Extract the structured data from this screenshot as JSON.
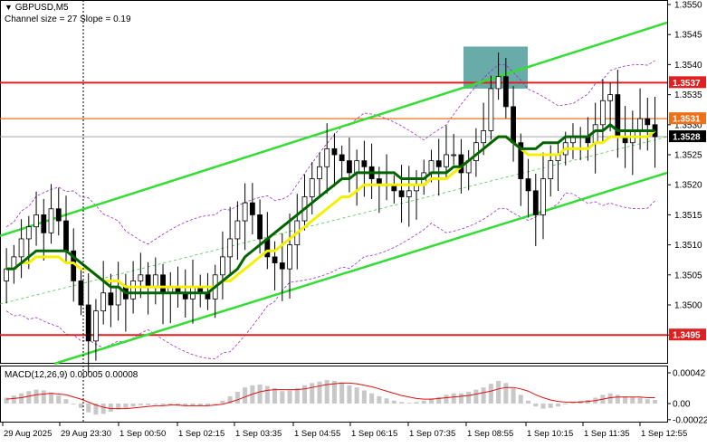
{
  "header": {
    "symbol": "GBPUSD,M5",
    "indicator_info": "Channel size = 27 Slope = 0.19",
    "menu_icon": "triangle-down-icon"
  },
  "macd_label": "MACD(12,26,9) 0.00005 0.00008",
  "colors": {
    "bull_candle": "#000000",
    "bear_candle": "#000000",
    "ma_fast": "#f5f000",
    "ma_slow": "#006400",
    "channel": "#33dd33",
    "channel_mid": "#44cc44",
    "envelope": "#9a30c8",
    "level_red": "#e02020",
    "level_orange": "#f0701a",
    "highlight_box": "#4f9c99",
    "macd_hist": "#c8c8c8",
    "macd_signal": "#e01010"
  },
  "chart_data": [
    {
      "type": "candlestick",
      "title": "GBPUSD,M5",
      "y_ticks": [
        "1.3550",
        "1.3545",
        "1.3540",
        "1.3535",
        "1.3530",
        "1.3525",
        "1.3520",
        "1.3515",
        "1.3510",
        "1.3505",
        "1.3500",
        "1.3495"
      ],
      "x_ticks": [
        "29 Aug 2025",
        "29 Aug 23:30",
        "1 Sep 00:50",
        "1 Sep 02:15",
        "1 Sep 03:35",
        "1 Sep 04:55",
        "1 Sep 06:15",
        "1 Sep 07:35",
        "1 Sep 08:55",
        "1 Sep 10:15",
        "1 Sep 11:35",
        "1 Sep 12:55"
      ],
      "ylim": [
        1.349,
        1.3552
      ],
      "current_price": "1.3528",
      "levels": [
        {
          "label": "1.3537",
          "value": 1.3537,
          "color": "red"
        },
        {
          "label": "1.3531",
          "value": 1.3531,
          "color": "orange"
        },
        {
          "label": "1.3495",
          "value": 1.3495,
          "color": "red"
        }
      ],
      "channel": {
        "upper": [
          1.3513,
          1.3547
        ],
        "lower": [
          1.349,
          1.3522
        ],
        "middle": [
          1.35,
          1.3534
        ]
      },
      "highlight_zone": {
        "x_from": "1 Sep 08:25",
        "x_to": "1 Sep 09:05",
        "y_from": 1.3536,
        "y_to": 1.3543
      },
      "close": [
        1.3506,
        1.3508,
        1.3511,
        1.3513,
        1.3515,
        1.3512,
        1.3516,
        1.3514,
        1.3509,
        1.3504,
        1.35,
        1.3494,
        1.3499,
        1.3502,
        1.35,
        1.3503,
        1.3501,
        1.3504,
        1.3505,
        1.3503,
        1.3505,
        1.3502,
        1.3503,
        1.3502,
        1.3501,
        1.3503,
        1.3502,
        1.3501,
        1.3505,
        1.3508,
        1.3511,
        1.3514,
        1.3517,
        1.3515,
        1.3511,
        1.3508,
        1.3507,
        1.3506,
        1.351,
        1.3514,
        1.3518,
        1.3521,
        1.3523,
        1.3526,
        1.3525,
        1.3524,
        1.3522,
        1.3524,
        1.3523,
        1.3521,
        1.352,
        1.352,
        1.3519,
        1.3518,
        1.3519,
        1.352,
        1.3522,
        1.3524,
        1.3523,
        1.3525,
        1.3525,
        1.3522,
        1.3524,
        1.3527,
        1.3529,
        1.3536,
        1.3538,
        1.3533,
        1.3527,
        1.3521,
        1.3519,
        1.3515,
        1.3521,
        1.3524,
        1.3525,
        1.3527,
        1.3528,
        1.3528,
        1.3527,
        1.353,
        1.3534,
        1.3535,
        1.3528,
        1.3527,
        1.3529,
        1.3531,
        1.353,
        1.3528
      ],
      "series": [
        {
          "name": "MA fast",
          "values": [
            1.3506,
            1.3506,
            1.3507,
            1.3507,
            1.3508,
            1.3508,
            1.3508,
            1.3508,
            1.3507,
            1.3507,
            1.3506,
            1.3506,
            1.3505,
            1.3504,
            1.3504,
            1.3504,
            1.3503,
            1.3503,
            1.3503,
            1.3503,
            1.3503,
            1.3503,
            1.3503,
            1.3503,
            1.3503,
            1.3503,
            1.3503,
            1.3503,
            1.3503,
            1.3504,
            1.3504,
            1.3505,
            1.3506,
            1.3507,
            1.3508,
            1.3509,
            1.3509,
            1.351,
            1.3511,
            1.3512,
            1.3513,
            1.3514,
            1.3515,
            1.3516,
            1.3517,
            1.3518,
            1.3518,
            1.3519,
            1.352,
            1.352,
            1.352,
            1.352,
            1.352,
            1.352,
            1.352,
            1.352,
            1.352,
            1.3521,
            1.3521,
            1.3521,
            1.3522,
            1.3523,
            1.3524,
            1.3525,
            1.3526,
            1.3527,
            1.3528,
            1.3528,
            1.3527,
            1.3526,
            1.3525,
            1.3525,
            1.3525,
            1.3525,
            1.3525,
            1.3526,
            1.3526,
            1.3526,
            1.3526,
            1.3527,
            1.3527,
            1.3528,
            1.3528,
            1.3528,
            1.3528,
            1.3528,
            1.3528,
            1.3529
          ]
        },
        {
          "name": "MA slow",
          "values": [
            1.3506,
            1.3506,
            1.3507,
            1.3508,
            1.3509,
            1.3509,
            1.3509,
            1.3509,
            1.3509,
            1.3508,
            1.3507,
            1.3506,
            1.3505,
            1.3504,
            1.3503,
            1.3503,
            1.3502,
            1.3502,
            1.3502,
            1.3502,
            1.3502,
            1.3502,
            1.3502,
            1.3502,
            1.3502,
            1.3502,
            1.3502,
            1.3502,
            1.3503,
            1.3504,
            1.3505,
            1.3506,
            1.3508,
            1.3509,
            1.351,
            1.3511,
            1.3512,
            1.3513,
            1.3514,
            1.3515,
            1.3516,
            1.3517,
            1.3518,
            1.3519,
            1.352,
            1.3521,
            1.3521,
            1.3522,
            1.3522,
            1.3522,
            1.3522,
            1.3522,
            1.3522,
            1.3521,
            1.3521,
            1.3521,
            1.3521,
            1.3522,
            1.3522,
            1.3522,
            1.3523,
            1.3523,
            1.3524,
            1.3525,
            1.3526,
            1.3527,
            1.3528,
            1.3528,
            1.3527,
            1.3526,
            1.3526,
            1.3526,
            1.3527,
            1.3527,
            1.3527,
            1.3528,
            1.3528,
            1.3528,
            1.3528,
            1.3529,
            1.3529,
            1.353,
            1.3529,
            1.3529,
            1.3529,
            1.3529,
            1.3529,
            1.3529
          ]
        }
      ]
    },
    {
      "type": "bar",
      "title": "MACD(12,26,9) 0.00005 0.00008",
      "y_ticks": [
        "0.00042",
        "0.00",
        "-0.00022"
      ],
      "ylim": [
        -0.00024,
        0.00044
      ],
      "series": [
        {
          "name": "MACD",
          "values": [
            8e-05,
            0.00011,
            0.00014,
            0.00017,
            0.00019,
            0.00018,
            0.00015,
            0.00011,
            6e-05,
            0.0,
            -6e-05,
            -0.00012,
            -0.00015,
            -0.00014,
            -0.00011,
            -8e-05,
            -6e-05,
            -4e-05,
            -2e-05,
            -2e-05,
            -1e-05,
            -2e-05,
            -2e-05,
            -3e-05,
            -3e-05,
            -3e-05,
            -3e-05,
            -3e-05,
            0.0,
            4e-05,
            0.0001,
            0.00016,
            0.00022,
            0.00025,
            0.00026,
            0.00024,
            0.00021,
            0.00017,
            0.00018,
            0.00021,
            0.00025,
            0.00028,
            0.0003,
            0.00032,
            0.00031,
            0.00029,
            0.00025,
            0.00022,
            0.00018,
            0.00014,
            0.0001,
            7e-05,
            4e-05,
            2e-05,
            1e-05,
            2e-05,
            4e-05,
            7e-05,
            9e-05,
            0.00012,
            0.00014,
            0.00014,
            0.00016,
            0.00019,
            0.00022,
            0.00027,
            0.00031,
            0.00028,
            0.00021,
            0.00012,
            4e-05,
            -4e-05,
            -7e-05,
            -6e-05,
            -4e-05,
            -1e-05,
            2e-05,
            4e-05,
            5e-05,
            8e-05,
            0.00012,
            0.00014,
            0.00012,
            0.0001,
            9e-05,
            8e-05,
            6e-05,
            5e-05
          ]
        },
        {
          "name": "Signal",
          "values": [
            6e-05,
            7e-05,
            8e-05,
            0.0001,
            0.00012,
            0.00013,
            0.00014,
            0.00013,
            0.00012,
            9e-05,
            6e-05,
            2e-05,
            -2e-05,
            -5e-05,
            -7e-05,
            -7e-05,
            -7e-05,
            -6e-05,
            -5e-05,
            -4e-05,
            -3e-05,
            -3e-05,
            -2e-05,
            -2e-05,
            -3e-05,
            -3e-05,
            -3e-05,
            -3e-05,
            -2e-05,
            -1e-05,
            2e-05,
            5e-05,
            9e-05,
            0.00013,
            0.00016,
            0.00018,
            0.00019,
            0.00019,
            0.00019,
            0.00019,
            0.0002,
            0.00022,
            0.00024,
            0.00026,
            0.00027,
            0.00028,
            0.00028,
            0.00027,
            0.00025,
            0.00023,
            0.0002,
            0.00017,
            0.00014,
            0.00011,
            9e-05,
            7e-05,
            6e-05,
            6e-05,
            7e-05,
            8e-05,
            9e-05,
            0.0001,
            0.00011,
            0.00013,
            0.00015,
            0.00017,
            0.0002,
            0.00022,
            0.00022,
            0.0002,
            0.00017,
            0.00012,
            8e-05,
            5e-05,
            3e-05,
            2e-05,
            2e-05,
            2e-05,
            3e-05,
            4e-05,
            6e-05,
            8e-05,
            9e-05,
            9e-05,
            9e-05,
            9e-05,
            8e-05,
            8e-05
          ]
        }
      ]
    }
  ]
}
